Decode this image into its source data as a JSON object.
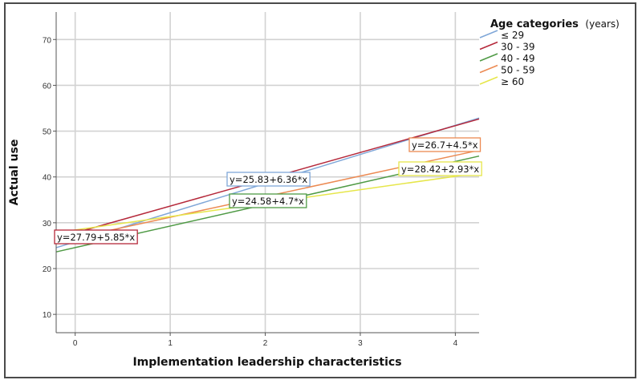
{
  "chart_data": {
    "type": "line",
    "xlabel": "Implementation leadership characteristics",
    "ylabel": "Actual use",
    "xlim": [
      -0.2,
      4.25
    ],
    "ylim": [
      6,
      76
    ],
    "x_ticks": [
      0,
      1,
      2,
      3,
      4
    ],
    "y_ticks": [
      10,
      20,
      30,
      40,
      50,
      60,
      70
    ],
    "grid": true,
    "legend": {
      "title": "Age categories",
      "subtitle": "(years)",
      "placement": "top-right"
    },
    "series": [
      {
        "name": "≤ 29",
        "color": "#7fa7d8",
        "intercept": 25.83,
        "slope": 6.36,
        "equation": "y=25.83+6.36*x",
        "x_range": [
          -0.2,
          4.25
        ]
      },
      {
        "name": "30 - 39",
        "color": "#b5283a",
        "intercept": 27.79,
        "slope": 5.85,
        "equation": "y=27.79+5.85*x",
        "x_range": [
          -0.2,
          4.25
        ]
      },
      {
        "name": "40 - 49",
        "color": "#4f9a45",
        "intercept": 24.58,
        "slope": 4.7,
        "equation": "y=24.58+4.7*x",
        "x_range": [
          -0.2,
          4.25
        ]
      },
      {
        "name": "50 - 59",
        "color": "#ec8a52",
        "intercept": 26.7,
        "slope": 4.5,
        "equation": "y=26.7+4.5*x",
        "x_range": [
          -0.2,
          4.25
        ]
      },
      {
        "name": "≥ 60",
        "color": "#e6e64a",
        "intercept": 28.42,
        "slope": 2.93,
        "equation": "y=28.42+2.93*x",
        "x_range": [
          -0.2,
          4.25
        ]
      }
    ]
  }
}
